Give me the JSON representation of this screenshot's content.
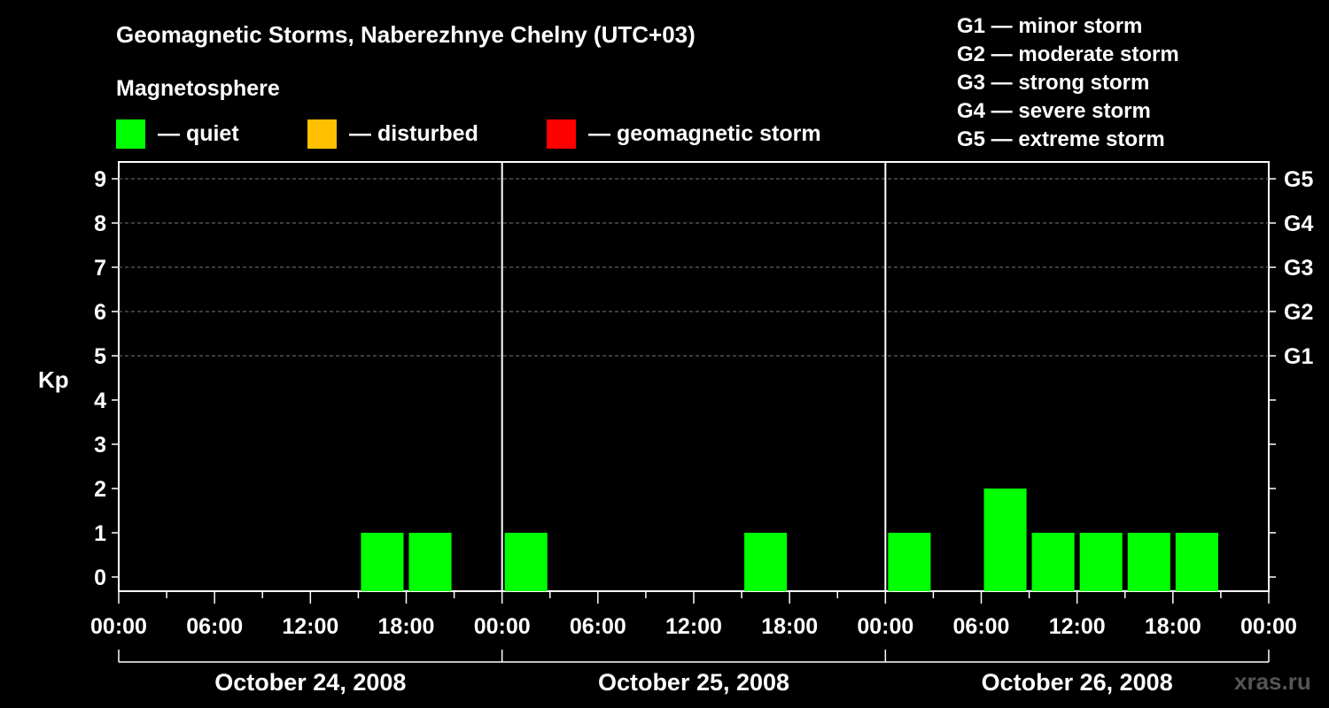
{
  "header": {
    "title": "Geomagnetic Storms, Naberezhnye Chelny (UTC+03)",
    "subtitle": "Magnetosphere"
  },
  "legend": [
    {
      "label": "— quiet",
      "color": "#00ff00"
    },
    {
      "label": "— disturbed",
      "color": "#ffc000"
    },
    {
      "label": "— geomagnetic storm",
      "color": "#ff0000"
    }
  ],
  "storm_scale": [
    "G1 — minor storm",
    "G2 — moderate storm",
    "G3 — strong storm",
    "G4 — severe storm",
    "G5 — extreme storm"
  ],
  "watermark": "xras.ru",
  "chart_data": {
    "type": "bar",
    "title": "Geomagnetic Storms, Naberezhnye Chelny (UTC+03)",
    "ylabel": "Kp",
    "xlabel": "",
    "ylim": [
      0,
      9
    ],
    "y_ticks": [
      "0",
      "1",
      "2",
      "3",
      "4",
      "5",
      "6",
      "7",
      "8",
      "9"
    ],
    "right_axis_labels": [
      {
        "kp": 5,
        "label": "G1"
      },
      {
        "kp": 6,
        "label": "G2"
      },
      {
        "kp": 7,
        "label": "G3"
      },
      {
        "kp": 8,
        "label": "G4"
      },
      {
        "kp": 9,
        "label": "G5"
      }
    ],
    "grid": "dashed horizontal at Kp 5-9",
    "interval_hours": 3,
    "x_tick_labels": [
      "00:00",
      "06:00",
      "12:00",
      "18:00",
      "00:00",
      "06:00",
      "12:00",
      "18:00",
      "00:00",
      "06:00",
      "12:00",
      "18:00",
      "00:00"
    ],
    "days": [
      {
        "date": "October 24, 2008",
        "kp": [
          0,
          0,
          0,
          0,
          0,
          1,
          1,
          0
        ]
      },
      {
        "date": "October 25, 2008",
        "kp": [
          1,
          0,
          0,
          0,
          0,
          1,
          0,
          0
        ]
      },
      {
        "date": "October 26, 2008",
        "kp": [
          1,
          0,
          2,
          1,
          1,
          1,
          1,
          null
        ]
      }
    ]
  }
}
